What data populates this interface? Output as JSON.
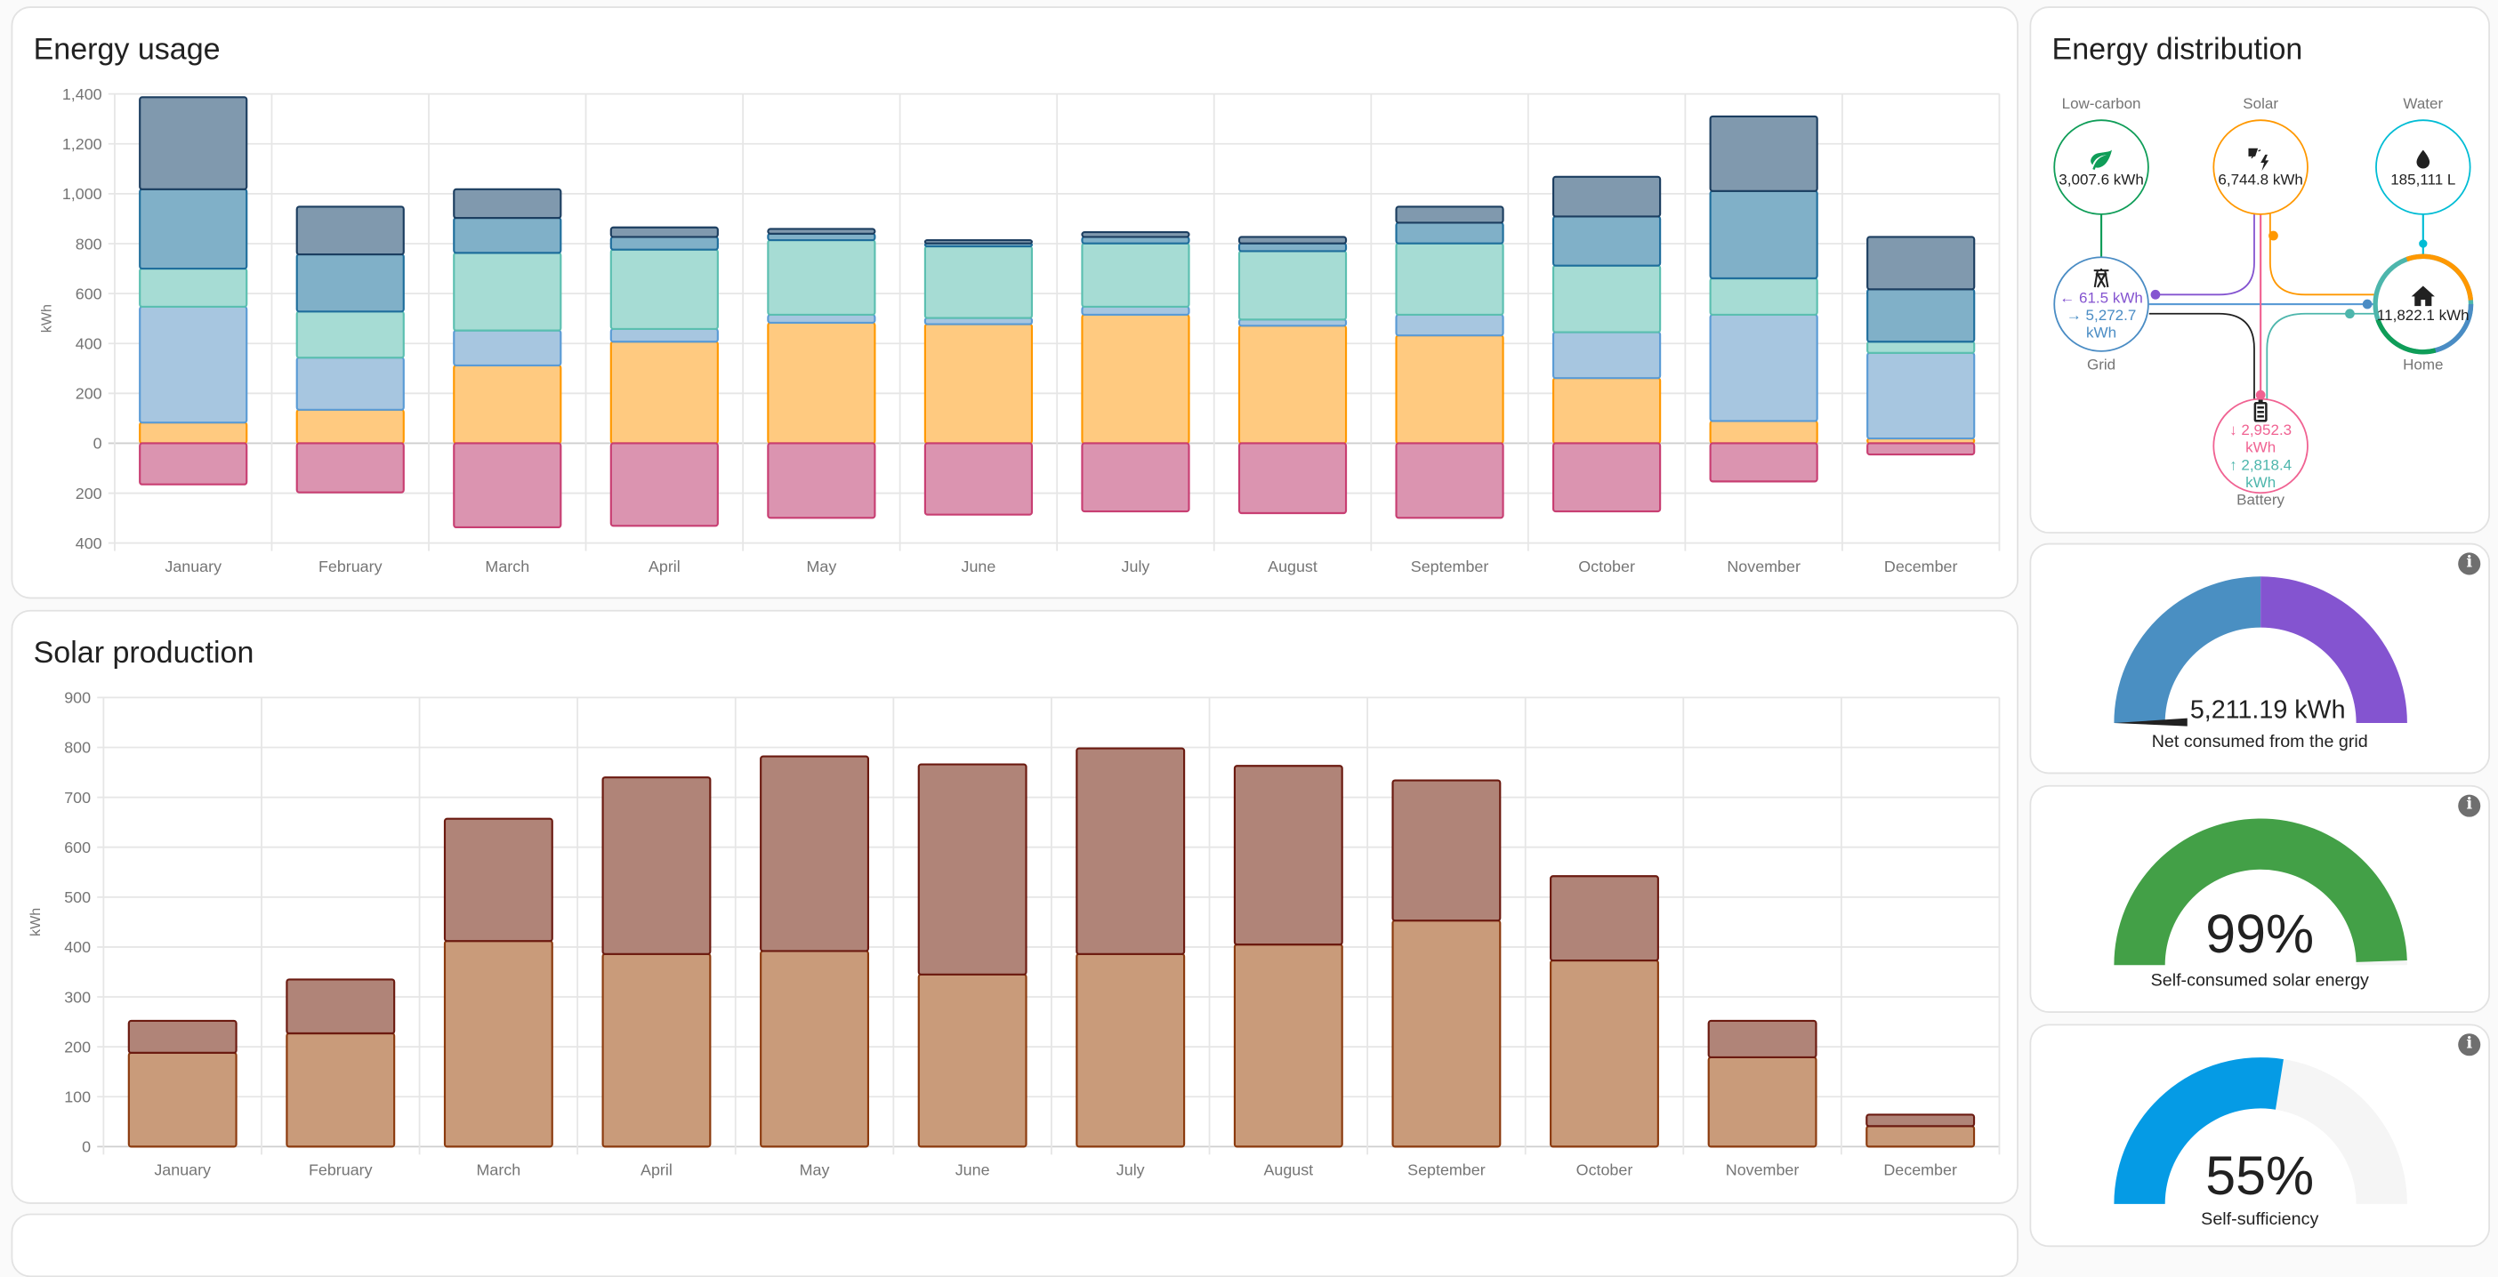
{
  "energy_usage": {
    "title": "Energy usage",
    "chart_data": {
      "type": "bar",
      "stacked": true,
      "ylabel": "kWh",
      "ylim": [
        -400,
        1400
      ],
      "yticks": [
        {
          "v": 1400,
          "label": "1,400"
        },
        {
          "v": 1200,
          "label": "1,200"
        },
        {
          "v": 1000,
          "label": "1,000"
        },
        {
          "v": 800,
          "label": "800"
        },
        {
          "v": 600,
          "label": "600"
        },
        {
          "v": 400,
          "label": "400"
        },
        {
          "v": 200,
          "label": "200"
        },
        {
          "v": 0,
          "label": "0"
        },
        {
          "v": -200,
          "label": "200"
        },
        {
          "v": -400,
          "label": "400"
        }
      ],
      "categories": [
        "January",
        "February",
        "March",
        "April",
        "May",
        "June",
        "July",
        "August",
        "September",
        "October",
        "November",
        "December"
      ],
      "series": [
        {
          "fill": "#ffca80",
          "stroke": "#ff9800",
          "values": [
            83,
            134,
            312,
            407,
            483,
            477,
            515,
            471,
            432,
            261,
            89,
            19
          ]
        },
        {
          "fill": "#a7c6e0",
          "stroke": "#5a9bd5",
          "values": [
            464,
            209,
            140,
            51,
            32,
            25,
            32,
            25,
            83,
            184,
            426,
            343
          ]
        },
        {
          "fill": "#a6dcd4",
          "stroke": "#5bbfb0",
          "values": [
            153,
            185,
            311,
            318,
            299,
            287,
            254,
            274,
            286,
            267,
            146,
            45
          ]
        },
        {
          "fill": "#80b0c8",
          "stroke": "#1f6e9c",
          "values": [
            318,
            229,
            140,
            51,
            26,
            12,
            26,
            31,
            83,
            197,
            350,
            210
          ]
        },
        {
          "fill": "#8099ae",
          "stroke": "#1c3e60",
          "values": [
            369,
            191,
            115,
            38,
            19,
            13,
            19,
            26,
            64,
            159,
            299,
            210
          ]
        },
        {
          "fill": "#db94b0",
          "stroke": "#c83e72",
          "values": [
            -165,
            -197,
            -337,
            -331,
            -299,
            -286,
            -273,
            -280,
            -299,
            -273,
            -153,
            -45
          ]
        }
      ]
    }
  },
  "solar_production": {
    "title": "Solar production",
    "chart_data": {
      "type": "bar",
      "stacked": true,
      "ylabel": "kWh",
      "ylim": [
        0,
        900
      ],
      "yticks": [
        {
          "v": 900,
          "label": "900"
        },
        {
          "v": 800,
          "label": "800"
        },
        {
          "v": 700,
          "label": "700"
        },
        {
          "v": 600,
          "label": "600"
        },
        {
          "v": 500,
          "label": "500"
        },
        {
          "v": 400,
          "label": "400"
        },
        {
          "v": 300,
          "label": "300"
        },
        {
          "v": 200,
          "label": "200"
        },
        {
          "v": 100,
          "label": "100"
        },
        {
          "v": 0,
          "label": "0"
        }
      ],
      "categories": [
        "January",
        "February",
        "March",
        "April",
        "May",
        "June",
        "July",
        "August",
        "September",
        "October",
        "November",
        "December"
      ],
      "series": [
        {
          "fill": "#c99b7a",
          "stroke": "#8b3a0e",
          "values": [
            188,
            227,
            412,
            386,
            392,
            345,
            386,
            405,
            453,
            373,
            179,
            41
          ]
        },
        {
          "fill": "#b08478",
          "stroke": "#6b1a10",
          "values": [
            64,
            108,
            245,
            354,
            390,
            421,
            412,
            358,
            281,
            169,
            73,
            23
          ]
        }
      ]
    }
  },
  "distribution": {
    "title": "Energy distribution",
    "low_carbon": {
      "label": "Low-carbon",
      "value": "3,007.6 kWh"
    },
    "solar": {
      "label": "Solar",
      "value": "6,744.8 kWh"
    },
    "water": {
      "label": "Water",
      "value": "185,111 L"
    },
    "grid": {
      "label": "Grid",
      "from": "← 61.5 kWh",
      "to": "→ 5,272.7 kWh"
    },
    "home": {
      "label": "Home",
      "value": "11,822.1 kWh"
    },
    "battery": {
      "label": "Battery",
      "in": "↓ 2,952.3 kWh",
      "out": "↑ 2,818.4 kWh"
    }
  },
  "gauges": [
    {
      "value": "5,211.19 kWh",
      "label": "Net consumed from the grid",
      "info": "i"
    },
    {
      "value": "99%",
      "label": "Self-consumed solar energy",
      "percent": 99,
      "color": "#43a047",
      "info": "i"
    },
    {
      "value": "55%",
      "label": "Self-sufficiency",
      "percent": 55,
      "color": "#059be5",
      "info": "i"
    }
  ]
}
